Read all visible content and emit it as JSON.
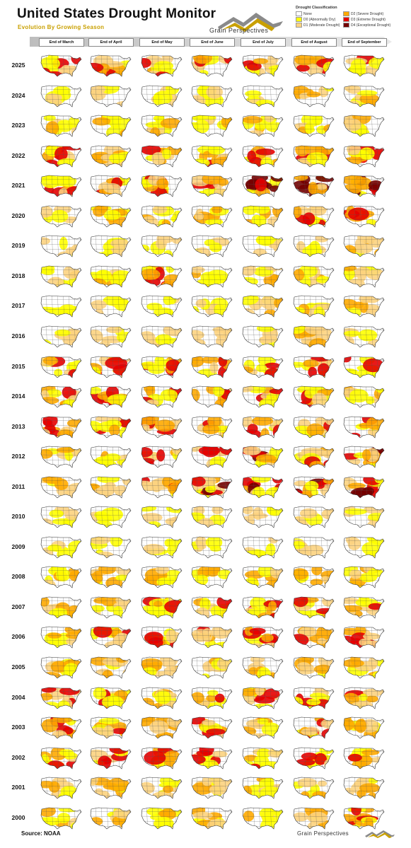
{
  "header": {
    "title": "United States Drought Monitor",
    "subtitle": "Evolution By Growing Season"
  },
  "brand": {
    "name": "Grain Perspectives",
    "colors": {
      "gold": "#c9a000",
      "gray": "#8a8a8a"
    }
  },
  "legend": {
    "title": "Drought Classification",
    "items": [
      {
        "label": "None",
        "color": "#ffffff",
        "level": -1
      },
      {
        "label": "D0 (Abnormally Dry)",
        "color": "#ffff00",
        "level": 0
      },
      {
        "label": "D1 (Moderate Drought)",
        "color": "#fcd37f",
        "level": 1
      },
      {
        "label": "D2 (Severe Drought)",
        "color": "#ffaa00",
        "level": 2
      },
      {
        "label": "D3 (Extreme Drought)",
        "color": "#e60000",
        "level": 3
      },
      {
        "label": "D4 (Exceptional Drought)",
        "color": "#730000",
        "level": 4
      }
    ]
  },
  "months": [
    "End of March",
    "End of April",
    "End of May",
    "End of June",
    "End of July",
    "End of August",
    "End of September"
  ],
  "years": [
    "2025",
    "2024",
    "2023",
    "2022",
    "2021",
    "2020",
    "2019",
    "2018",
    "2017",
    "2016",
    "2015",
    "2014",
    "2013",
    "2012",
    "2011",
    "2010",
    "2009",
    "2008",
    "2007",
    "2006",
    "2005",
    "2004",
    "2003",
    "2002",
    "2001",
    "2000"
  ],
  "intensity": [
    [
      3,
      3,
      3,
      3,
      3,
      3,
      3
    ],
    [
      1,
      1,
      1,
      1,
      1,
      2,
      2
    ],
    [
      2,
      2,
      3,
      2,
      2,
      2,
      2
    ],
    [
      3,
      3,
      3,
      3,
      3,
      3,
      3
    ],
    [
      3,
      3,
      3,
      3,
      4,
      4,
      4
    ],
    [
      1,
      2,
      2,
      2,
      2,
      3,
      3
    ],
    [
      1,
      1,
      1,
      1,
      1,
      1,
      2
    ],
    [
      2,
      2,
      3,
      2,
      2,
      2,
      2
    ],
    [
      1,
      1,
      1,
      1,
      2,
      2,
      2
    ],
    [
      1,
      1,
      1,
      1,
      1,
      2,
      1
    ],
    [
      3,
      3,
      3,
      3,
      3,
      3,
      3
    ],
    [
      3,
      3,
      3,
      3,
      3,
      3,
      2
    ],
    [
      3,
      3,
      3,
      3,
      3,
      3,
      3
    ],
    [
      2,
      2,
      3,
      3,
      4,
      4,
      4
    ],
    [
      2,
      3,
      3,
      4,
      4,
      4,
      4
    ],
    [
      1,
      1,
      1,
      1,
      1,
      1,
      1
    ],
    [
      1,
      1,
      1,
      1,
      1,
      1,
      1
    ],
    [
      2,
      2,
      2,
      2,
      2,
      2,
      2
    ],
    [
      2,
      2,
      3,
      3,
      3,
      3,
      3
    ],
    [
      2,
      3,
      3,
      3,
      3,
      3,
      3
    ],
    [
      2,
      2,
      2,
      2,
      2,
      2,
      2
    ],
    [
      3,
      3,
      3,
      3,
      3,
      3,
      3
    ],
    [
      3,
      3,
      3,
      3,
      3,
      3,
      3
    ],
    [
      3,
      3,
      3,
      3,
      3,
      3,
      3
    ],
    [
      2,
      2,
      2,
      2,
      2,
      2,
      2
    ],
    [
      2,
      2,
      2,
      2,
      2,
      2,
      3
    ]
  ],
  "source": "Source: NOAA"
}
